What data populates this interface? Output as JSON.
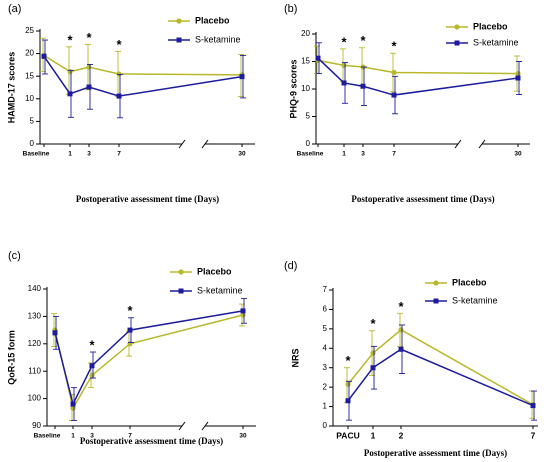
{
  "colors": {
    "placebo": "#b8b82a",
    "ketamine": "#1c1c9c",
    "axis": "#000000"
  },
  "chart_data": [
    {
      "type": "line",
      "panel_label": "(a)",
      "ylabel": "HAMD-17 scores",
      "xlabel": "Postoperative assessment time (Days)",
      "ylim": [
        0,
        25
      ],
      "yticks": [
        0,
        5,
        10,
        15,
        20,
        25
      ],
      "x_tick_labels": [
        "Baseline",
        "1",
        "3",
        "7",
        "30"
      ],
      "axis_break": true,
      "significance_at": [
        "1",
        "3",
        "7"
      ],
      "significance_label": "*",
      "legend_position": "top-right",
      "series": [
        {
          "name": "Placebo",
          "color": "#b8b82a",
          "marker": "circle",
          "values": [
            19.6,
            16.0,
            17.0,
            15.5,
            15.3
          ],
          "err_low": [
            16.0,
            11.0,
            12.0,
            10.5,
            10.5
          ],
          "err_high": [
            23.4,
            21.5,
            22.0,
            20.5,
            19.8
          ]
        },
        {
          "name": "S-ketamine",
          "color": "#1c1c9c",
          "marker": "square",
          "values": [
            19.4,
            11.1,
            12.6,
            10.6,
            14.9
          ],
          "err_low": [
            15.5,
            5.9,
            7.7,
            5.8,
            10.2
          ],
          "err_high": [
            23.0,
            16.3,
            17.6,
            15.4,
            19.6
          ]
        }
      ]
    },
    {
      "type": "line",
      "panel_label": "(b)",
      "ylabel": "PHQ-9 scores",
      "xlabel": "Postoperative assessment time (Days)",
      "ylim": [
        0,
        20
      ],
      "yticks": [
        0,
        5,
        10,
        15,
        20
      ],
      "x_tick_labels": [
        "Baseline",
        "1",
        "3",
        "7",
        "30"
      ],
      "axis_break": true,
      "significance_at": [
        "1",
        "3",
        "7"
      ],
      "significance_label": "*",
      "legend_position": "top-right",
      "series": [
        {
          "name": "Placebo",
          "color": "#b8b82a",
          "marker": "circle",
          "values": [
            15.2,
            14.3,
            14.0,
            13.0,
            12.8
          ],
          "err_low": [
            12.8,
            11.3,
            10.5,
            9.5,
            9.6
          ],
          "err_high": [
            17.8,
            17.3,
            17.5,
            16.5,
            16.0
          ]
        },
        {
          "name": "S-ketamine",
          "color": "#1c1c9c",
          "marker": "square",
          "values": [
            15.6,
            11.1,
            10.5,
            8.9,
            12.0
          ],
          "err_low": [
            12.8,
            7.4,
            7.0,
            5.5,
            9.0
          ],
          "err_high": [
            18.4,
            14.8,
            14.0,
            12.3,
            15.0
          ]
        }
      ]
    },
    {
      "type": "line",
      "panel_label": "(c)",
      "ylabel": "QoR-15 form",
      "xlabel": "Postoperative assessment time (Days)",
      "ylim": [
        90,
        140
      ],
      "yticks": [
        90,
        100,
        110,
        120,
        130,
        140
      ],
      "x_tick_labels": [
        "Baseline",
        "1",
        "3",
        "7",
        "30"
      ],
      "axis_break": true,
      "significance_at": [
        "3",
        "7"
      ],
      "significance_label": "*",
      "legend_position": "top-right",
      "series": [
        {
          "name": "Placebo",
          "color": "#b8b82a",
          "marker": "circle",
          "values": [
            125.0,
            96.5,
            108.5,
            120.0,
            130.5
          ],
          "err_low": [
            119.0,
            92.0,
            104.0,
            115.5,
            126.5
          ],
          "err_high": [
            131.0,
            101.5,
            113.0,
            124.5,
            134.5
          ]
        },
        {
          "name": "S-ketamine",
          "color": "#1c1c9c",
          "marker": "square",
          "values": [
            124.0,
            98.0,
            112.0,
            125.0,
            132.0
          ],
          "err_low": [
            118.0,
            92.0,
            107.5,
            120.5,
            127.5
          ],
          "err_high": [
            130.0,
            104.0,
            117.0,
            129.5,
            136.5
          ]
        }
      ]
    },
    {
      "type": "line",
      "panel_label": "(d)",
      "ylabel": "NRS",
      "xlabel": "Postoperative assessment time (Days)",
      "ylim": [
        0,
        7
      ],
      "yticks": [
        0,
        1,
        2,
        3,
        4,
        5,
        6,
        7
      ],
      "x_tick_labels": [
        "PACU",
        "1",
        "2",
        "7"
      ],
      "axis_break": false,
      "significance_at": [
        "PACU",
        "1",
        "2"
      ],
      "significance_label": "*",
      "legend_position": "top-center",
      "series": [
        {
          "name": "Placebo",
          "color": "#b8b82a",
          "marker": "circle",
          "values": [
            2.15,
            3.75,
            4.95,
            1.1
          ],
          "err_low": [
            1.2,
            2.6,
            4.1,
            0.4
          ],
          "err_high": [
            3.0,
            4.9,
            5.8,
            1.8
          ]
        },
        {
          "name": "S-ketamine",
          "color": "#1c1c9c",
          "marker": "square",
          "values": [
            1.3,
            3.0,
            3.95,
            1.05
          ],
          "err_low": [
            0.3,
            1.9,
            2.7,
            0.3
          ],
          "err_high": [
            2.3,
            4.1,
            5.2,
            1.8
          ]
        }
      ]
    }
  ]
}
